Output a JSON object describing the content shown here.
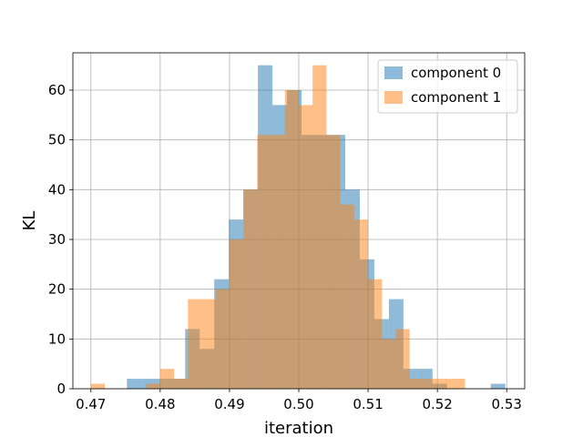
{
  "chart_data": {
    "type": "histogram",
    "xlabel": "iteration",
    "ylabel": "KL",
    "xlim": [
      0.4674,
      0.5326
    ],
    "ylim": [
      0,
      67.5
    ],
    "x_ticks": [
      0.47,
      0.48,
      0.49,
      0.5,
      0.51,
      0.52,
      0.53
    ],
    "x_tick_labels": [
      "0.47",
      "0.48",
      "0.49",
      "0.50",
      "0.51",
      "0.52",
      "0.53"
    ],
    "y_ticks": [
      0,
      10,
      20,
      30,
      40,
      50,
      60
    ],
    "y_tick_labels": [
      "0",
      "10",
      "20",
      "30",
      "40",
      "50",
      "60"
    ],
    "grid": true,
    "legend_position": "top-right",
    "series": [
      {
        "name": "component 0",
        "color": "#1f77b4",
        "alpha": 0.5,
        "bins": [
          {
            "x0": 0.4752,
            "x1": 0.4773,
            "count": 2
          },
          {
            "x0": 0.4773,
            "x1": 0.4794,
            "count": 2
          },
          {
            "x0": 0.4794,
            "x1": 0.4815,
            "count": 2
          },
          {
            "x0": 0.4815,
            "x1": 0.4836,
            "count": 2
          },
          {
            "x0": 0.4836,
            "x1": 0.4857,
            "count": 12
          },
          {
            "x0": 0.4857,
            "x1": 0.4878,
            "count": 8
          },
          {
            "x0": 0.4878,
            "x1": 0.4899,
            "count": 22
          },
          {
            "x0": 0.4899,
            "x1": 0.492,
            "count": 34
          },
          {
            "x0": 0.492,
            "x1": 0.4941,
            "count": 40
          },
          {
            "x0": 0.4941,
            "x1": 0.4962,
            "count": 65
          },
          {
            "x0": 0.4962,
            "x1": 0.4983,
            "count": 57
          },
          {
            "x0": 0.4983,
            "x1": 0.5004,
            "count": 60
          },
          {
            "x0": 0.5004,
            "x1": 0.5025,
            "count": 51
          },
          {
            "x0": 0.5025,
            "x1": 0.5046,
            "count": 51
          },
          {
            "x0": 0.5046,
            "x1": 0.5067,
            "count": 51
          },
          {
            "x0": 0.5067,
            "x1": 0.5088,
            "count": 40
          },
          {
            "x0": 0.5088,
            "x1": 0.5109,
            "count": 26
          },
          {
            "x0": 0.5109,
            "x1": 0.513,
            "count": 14
          },
          {
            "x0": 0.513,
            "x1": 0.5151,
            "count": 18
          },
          {
            "x0": 0.5151,
            "x1": 0.5172,
            "count": 4
          },
          {
            "x0": 0.5172,
            "x1": 0.5193,
            "count": 4
          },
          {
            "x0": 0.5193,
            "x1": 0.5214,
            "count": 1
          },
          {
            "x0": 0.5214,
            "x1": 0.5235,
            "count": 0
          },
          {
            "x0": 0.5235,
            "x1": 0.5256,
            "count": 0
          },
          {
            "x0": 0.5256,
            "x1": 0.5277,
            "count": 0
          },
          {
            "x0": 0.5277,
            "x1": 0.5298,
            "count": 1
          }
        ]
      },
      {
        "name": "component 1",
        "color": "#ff7f0e",
        "alpha": 0.5,
        "bins": [
          {
            "x0": 0.47,
            "x1": 0.472,
            "count": 1
          },
          {
            "x0": 0.478,
            "x1": 0.48,
            "count": 1
          },
          {
            "x0": 0.48,
            "x1": 0.482,
            "count": 4
          },
          {
            "x0": 0.482,
            "x1": 0.484,
            "count": 2
          },
          {
            "x0": 0.484,
            "x1": 0.486,
            "count": 18
          },
          {
            "x0": 0.486,
            "x1": 0.488,
            "count": 18
          },
          {
            "x0": 0.488,
            "x1": 0.49,
            "count": 20
          },
          {
            "x0": 0.49,
            "x1": 0.492,
            "count": 30
          },
          {
            "x0": 0.492,
            "x1": 0.494,
            "count": 40
          },
          {
            "x0": 0.494,
            "x1": 0.496,
            "count": 51
          },
          {
            "x0": 0.496,
            "x1": 0.498,
            "count": 51
          },
          {
            "x0": 0.498,
            "x1": 0.5,
            "count": 60
          },
          {
            "x0": 0.5,
            "x1": 0.502,
            "count": 57
          },
          {
            "x0": 0.502,
            "x1": 0.504,
            "count": 65
          },
          {
            "x0": 0.504,
            "x1": 0.506,
            "count": 51
          },
          {
            "x0": 0.506,
            "x1": 0.508,
            "count": 37
          },
          {
            "x0": 0.508,
            "x1": 0.51,
            "count": 34
          },
          {
            "x0": 0.51,
            "x1": 0.512,
            "count": 22
          },
          {
            "x0": 0.512,
            "x1": 0.514,
            "count": 10
          },
          {
            "x0": 0.514,
            "x1": 0.516,
            "count": 12
          },
          {
            "x0": 0.516,
            "x1": 0.518,
            "count": 2
          },
          {
            "x0": 0.518,
            "x1": 0.52,
            "count": 2
          },
          {
            "x0": 0.52,
            "x1": 0.522,
            "count": 2
          },
          {
            "x0": 0.522,
            "x1": 0.524,
            "count": 2
          }
        ]
      }
    ]
  }
}
